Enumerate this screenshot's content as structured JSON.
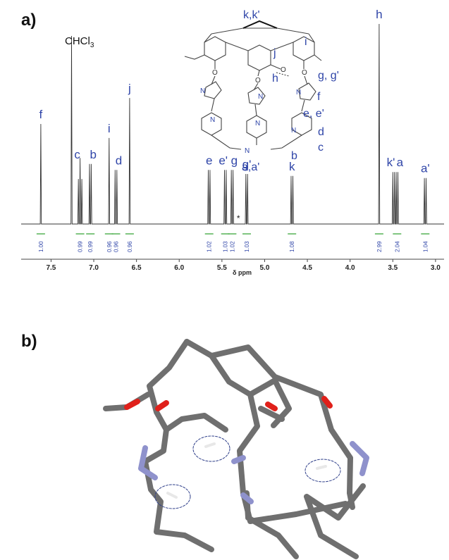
{
  "figure": {
    "panel_a": "a)",
    "panel_b": "b)"
  },
  "chart_data": {
    "type": "line",
    "title": "",
    "xlabel": "δ ppm",
    "xlim": [
      7.85,
      2.9
    ],
    "x_reversed": true,
    "x_ticks": [
      "7.5",
      "7.0",
      "6.5",
      "6.0",
      "5.5",
      "5.0",
      "4.5",
      "4.0",
      "3.5",
      "3.0"
    ],
    "x_tick_values": [
      7.5,
      7.0,
      6.5,
      6.0,
      5.5,
      5.0,
      4.5,
      4.0,
      3.5,
      3.0
    ],
    "solvent_peak": {
      "label": "CHCl3",
      "ppm": 7.26,
      "height": 0.94
    },
    "asterisk": {
      "label": "*",
      "ppm": 5.31
    },
    "peaks": [
      {
        "label": "f",
        "ppm": 7.62,
        "height": 0.5,
        "multiplicity": "s",
        "integral": "1.00"
      },
      {
        "label": "c",
        "ppm": 7.16,
        "height": 0.3,
        "multiplicity": "t",
        "integral": "0.99"
      },
      {
        "label": "b",
        "ppm": 7.04,
        "height": 0.3,
        "multiplicity": "d",
        "integral": "0.99"
      },
      {
        "label": "i",
        "ppm": 6.82,
        "height": 0.43,
        "multiplicity": "s",
        "integral": "0.96"
      },
      {
        "label": "d",
        "ppm": 6.74,
        "height": 0.27,
        "multiplicity": "d",
        "integral": "0.96"
      },
      {
        "label": "j",
        "ppm": 6.58,
        "height": 0.63,
        "multiplicity": "s",
        "integral": "0.96"
      },
      {
        "label": "e",
        "ppm": 5.65,
        "height": 0.27,
        "multiplicity": "d",
        "integral": "1.02"
      },
      {
        "label": "e'",
        "ppm": 5.46,
        "height": 0.27,
        "multiplicity": "d",
        "integral": "1.03"
      },
      {
        "label": "g",
        "ppm": 5.38,
        "height": 0.27,
        "multiplicity": "d",
        "integral": "1.02"
      },
      {
        "label": "g'",
        "ppm": 5.21,
        "height": 0.25,
        "multiplicity": "d",
        "integral": "1.03"
      },
      {
        "label": "k",
        "ppm": 4.68,
        "height": 0.24,
        "multiplicity": "d",
        "integral": "1.08"
      },
      {
        "label": "h",
        "ppm": 3.66,
        "height": 1.0,
        "multiplicity": "s",
        "integral": "2.99"
      },
      {
        "label": "k'",
        "ppm": 3.49,
        "height": 0.26,
        "multiplicity": "d",
        "integral": ""
      },
      {
        "label": "a",
        "ppm": 3.45,
        "height": 0.26,
        "multiplicity": "d",
        "integral": "2.04"
      },
      {
        "label": "a'",
        "ppm": 3.12,
        "height": 0.23,
        "multiplicity": "d",
        "integral": "1.04"
      }
    ]
  },
  "structure_labels": {
    "kk": "k,k'",
    "i": "i",
    "j": "j",
    "h": "h",
    "gg": "g, g'",
    "f": "f",
    "ee": "e, e'",
    "d": "d",
    "c": "c",
    "b": "b",
    "aa": "a,a'"
  },
  "structure_atoms": {
    "N": "N",
    "O": "O"
  },
  "colors": {
    "label_blue": "#2f45a8",
    "integral_green": "#2ca02c",
    "stick_grey": "#6f6f6f",
    "oxygen_red": "#e0201a",
    "nitrogen_blue": "#8f92cc"
  }
}
